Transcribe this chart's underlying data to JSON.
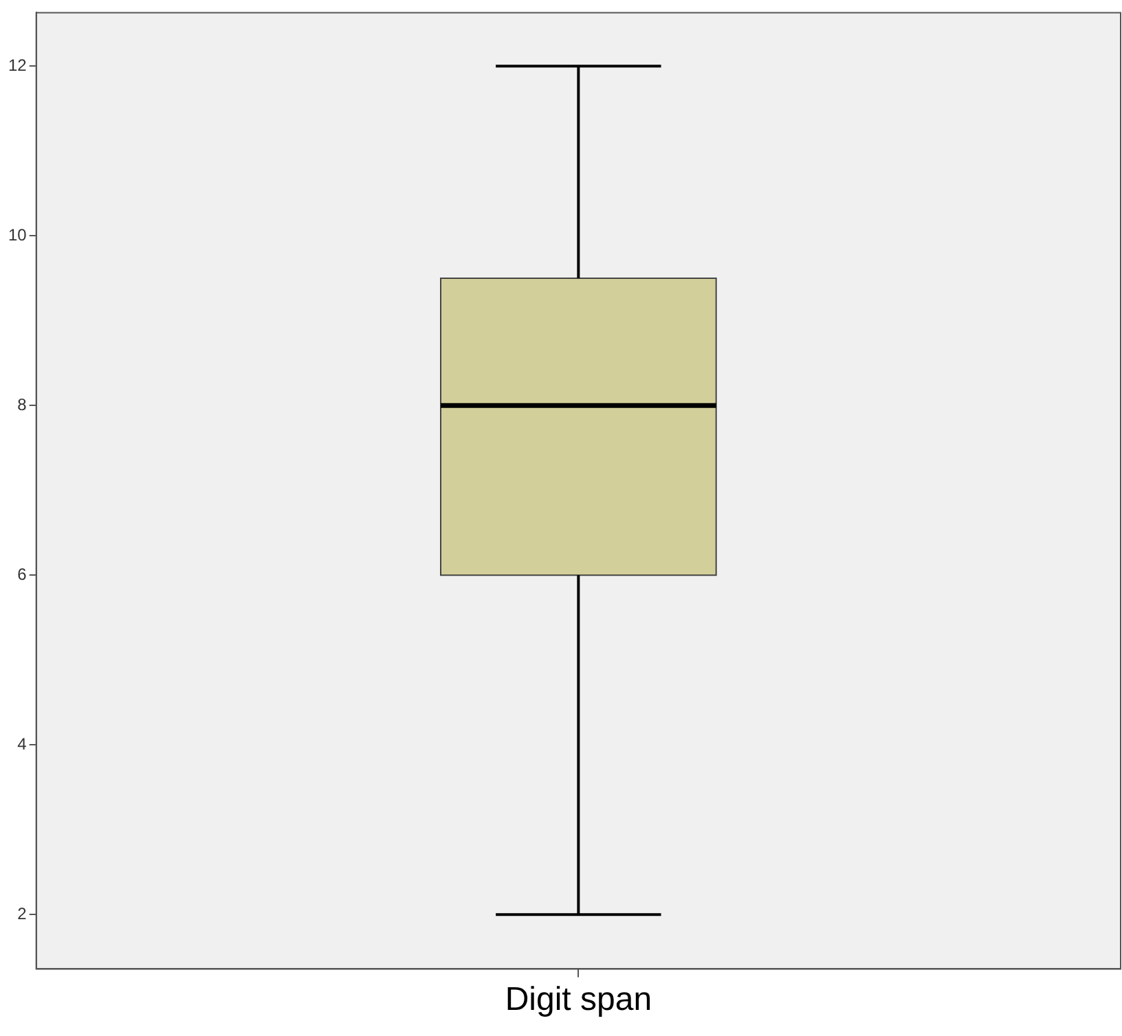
{
  "chart_data": {
    "type": "box",
    "categories": [
      "Digit span"
    ],
    "color": "#d3cf9b",
    "boxes": [
      {
        "low": 2,
        "q1": 6,
        "median": 8,
        "q3": 9.5,
        "high": 12
      }
    ],
    "ylim": [
      1.36,
      12.63
    ],
    "yticks": [
      2,
      4,
      6,
      8,
      10,
      12
    ]
  }
}
